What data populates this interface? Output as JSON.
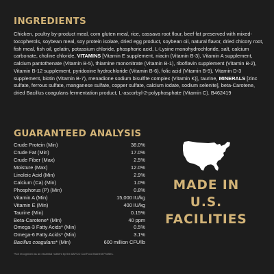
{
  "ingredients": {
    "heading": "INGREDIENTS",
    "text_1": "Chicken, poultry by-product meal, corn gluten meal, rice, cassava root flour, beef fat preserved with mixed-tocopherols, soybean meal, soy protein isolate, dried egg product, soybean oil, natural flavor, dried chicory root, fish meal, fish oil, gelatin, potassium chloride, phosphoric acid, L-Lysine monohydrochloride, salt, calcium carbonate, choline chloride, ",
    "vitamins_label": "VITAMINS",
    "text_2": " [Vitamin E supplement, niacin (Vitamin B-3), Vitamin A supplement, calcium pantothenate (Vitamin B-5), thiamine mononitrate (Vitamin B-1), riboflavin supplement (Vitamin B-2), Vitamin B-12 supplement, pyridoxine hydrochloride (Vitamin B-6), folic acid (Vitamin B-9), Vitamin D-3 supplement, biotin (Vitamin B-7), menadione sodium bisulfite complex (Vitamin K)], taurine, ",
    "minerals_label": "MINERALS",
    "text_3": " [zinc sulfate, ferrous sulfate, manganese sulfate, copper sulfate, calcium iodate, sodium selenite], beta-Carotene, dried Bacillus coagulans fermentation product, L-ascorbyl-2-polyphosphate (Vitamin C). B462419"
  },
  "analysis": {
    "heading": "GUARANTEED ANALYSIS",
    "rows": [
      {
        "name": "Crude Protein (Min)",
        "value": "38.0%"
      },
      {
        "name": "Crude Fat (Min)",
        "value": "17.0%"
      },
      {
        "name": "Crude Fiber (Max)",
        "value": "2.5%"
      },
      {
        "name": "Moisture (Max)",
        "value": "12.0%"
      },
      {
        "name": "Linoleic Acid (Min)",
        "value": "2.9%"
      },
      {
        "name": "Calcium (Ca) (Min)",
        "value": "1.0%"
      },
      {
        "name": "Phosphorus (P) (Min)",
        "value": "0.8%"
      },
      {
        "name": "Vitamin A (Min)",
        "value": "15,000 IU/kg"
      },
      {
        "name": "Vitamin E (Min)",
        "value": "400 IU/kg"
      },
      {
        "name": "Taurine (Min)",
        "value": "0.15%"
      },
      {
        "name": "Beta-Carotene* (Min)",
        "value": "40 ppm"
      },
      {
        "name": "Omega-3 Fatty Acids* (Min)",
        "value": "0.5%"
      },
      {
        "name": "Omega-6 Fatty Acids* (Min)",
        "value": "3.1%"
      }
    ],
    "bacillus_name": "Bacillus coagulans",
    "bacillus_suffix": "* (Min)",
    "bacillus_value": "600 million CFU/lb",
    "footnote": "*Not recognized as an essential nutrient by the AAFCO Cat Food Nutrient Profiles."
  },
  "badge": {
    "line1": "MADE IN",
    "line2": "U.S.",
    "line3": "FACILITIES",
    "map_icon": "usa-map-icon"
  },
  "colors": {
    "background": "#1d1d1d",
    "accent": "#d2b377",
    "text": "#e3e3e3"
  }
}
